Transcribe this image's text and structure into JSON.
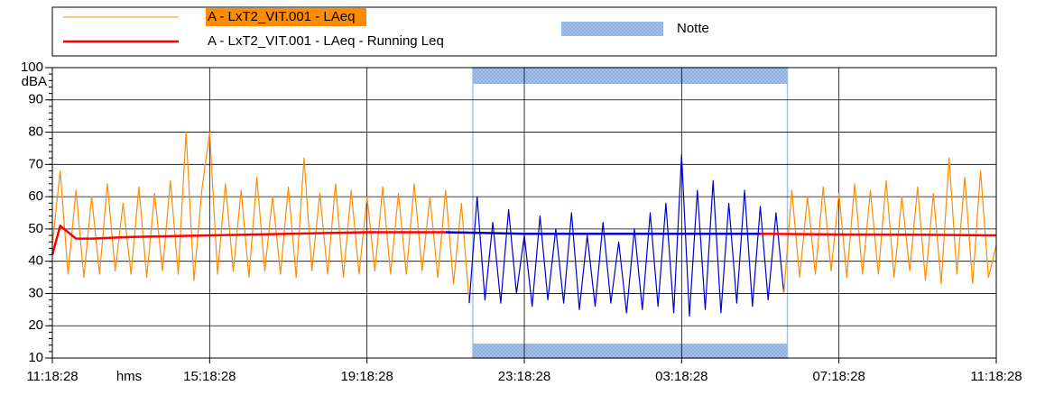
{
  "chart_data": {
    "type": "line",
    "y_label": "dBA",
    "x_unit_label": "hms",
    "xlim": [
      0,
      24
    ],
    "xticks": [
      {
        "value": 0,
        "label": "11:18:28"
      },
      {
        "value": 4,
        "label": "15:18:28"
      },
      {
        "value": 8,
        "label": "19:18:28"
      },
      {
        "value": 12,
        "label": "23:18:28"
      },
      {
        "value": 16,
        "label": "03:18:28"
      },
      {
        "value": 20,
        "label": "07:18:28"
      },
      {
        "value": 24,
        "label": "11:18:28"
      }
    ],
    "ylim": [
      10,
      100
    ],
    "yticks": [
      10,
      20,
      30,
      40,
      50,
      60,
      70,
      80,
      90,
      100
    ],
    "grid": true,
    "legend": "top",
    "series": [
      {
        "name": "A - LxT2_VIT.001 - LAeq",
        "color": "#ff8c00",
        "x": [
          0,
          0.2,
          0.4,
          0.6,
          0.8,
          1,
          1.2,
          1.4,
          1.6,
          1.8,
          2,
          2.2,
          2.4,
          2.6,
          2.8,
          3,
          3.2,
          3.4,
          3.6,
          3.8,
          4,
          4.2,
          4.4,
          4.6,
          4.8,
          5,
          5.2,
          5.4,
          5.6,
          5.8,
          6,
          6.2,
          6.4,
          6.6,
          6.8,
          7,
          7.2,
          7.4,
          7.6,
          7.8,
          8,
          8.2,
          8.4,
          8.6,
          8.8,
          9,
          9.2,
          9.4,
          9.6,
          9.8,
          10,
          10.2,
          10.4,
          10.6,
          10.8,
          11,
          11.2,
          11.4,
          11.6,
          11.8,
          12,
          12.2,
          12.4,
          12.6,
          12.8,
          13,
          13.2,
          13.4,
          13.6,
          13.8,
          14,
          14.2,
          14.4,
          14.6,
          14.8,
          15,
          15.2,
          15.4,
          15.6,
          15.8,
          16,
          16.2,
          16.4,
          16.6,
          16.8,
          17,
          17.2,
          17.4,
          17.6,
          17.8,
          18,
          18.2,
          18.4,
          18.6,
          18.8,
          19,
          19.2,
          19.4,
          19.6,
          19.8,
          20,
          20.2,
          20.4,
          20.6,
          20.8,
          21,
          21.2,
          21.4,
          21.6,
          21.8,
          22,
          22.2,
          22.4,
          22.6,
          22.8,
          23,
          23.2,
          23.4,
          23.6,
          23.8,
          24
        ],
        "values": [
          45,
          68,
          36,
          62,
          35,
          60,
          36,
          64,
          37,
          58,
          36,
          63,
          35,
          61,
          37,
          65,
          36,
          80,
          34,
          62,
          80,
          36,
          64,
          37,
          62,
          35,
          66,
          37,
          60,
          36,
          63,
          35,
          72,
          37,
          61,
          36,
          64,
          35,
          62,
          36,
          60,
          37,
          63,
          36,
          61,
          36,
          64,
          37,
          60,
          35,
          62,
          33,
          58,
          27,
          60,
          28,
          52,
          27,
          56,
          30,
          48,
          26,
          54,
          28,
          50,
          27,
          55,
          25,
          48,
          26,
          52,
          27,
          46,
          24,
          50,
          25,
          55,
          26,
          58,
          24,
          73,
          23,
          62,
          25,
          65,
          24,
          58,
          27,
          62,
          26,
          57,
          28,
          55,
          30,
          62,
          35,
          60,
          36,
          63,
          37,
          61,
          35,
          64,
          36,
          62,
          36,
          65,
          35,
          60,
          37,
          63,
          34,
          61,
          33,
          72,
          36,
          66,
          33,
          68,
          35,
          45
        ]
      },
      {
        "name": "A - LxT2_VIT.001 - LAeq - Running Leq",
        "color": "#ff0000",
        "x": [
          0,
          0.2,
          0.6,
          1,
          2,
          4,
          6,
          8,
          10,
          12,
          14,
          16,
          18,
          20,
          22,
          24
        ],
        "values": [
          42,
          51,
          47,
          47,
          47.5,
          48,
          48.5,
          49,
          49,
          48.5,
          48.5,
          48.5,
          48.5,
          48.3,
          48.2,
          48
        ]
      }
    ],
    "bands": [
      {
        "name": "Notte",
        "xlim": [
          10.69,
          18.69
        ],
        "color": "#a9c4ea",
        "series_color_inside": "#0000cc"
      }
    ]
  }
}
